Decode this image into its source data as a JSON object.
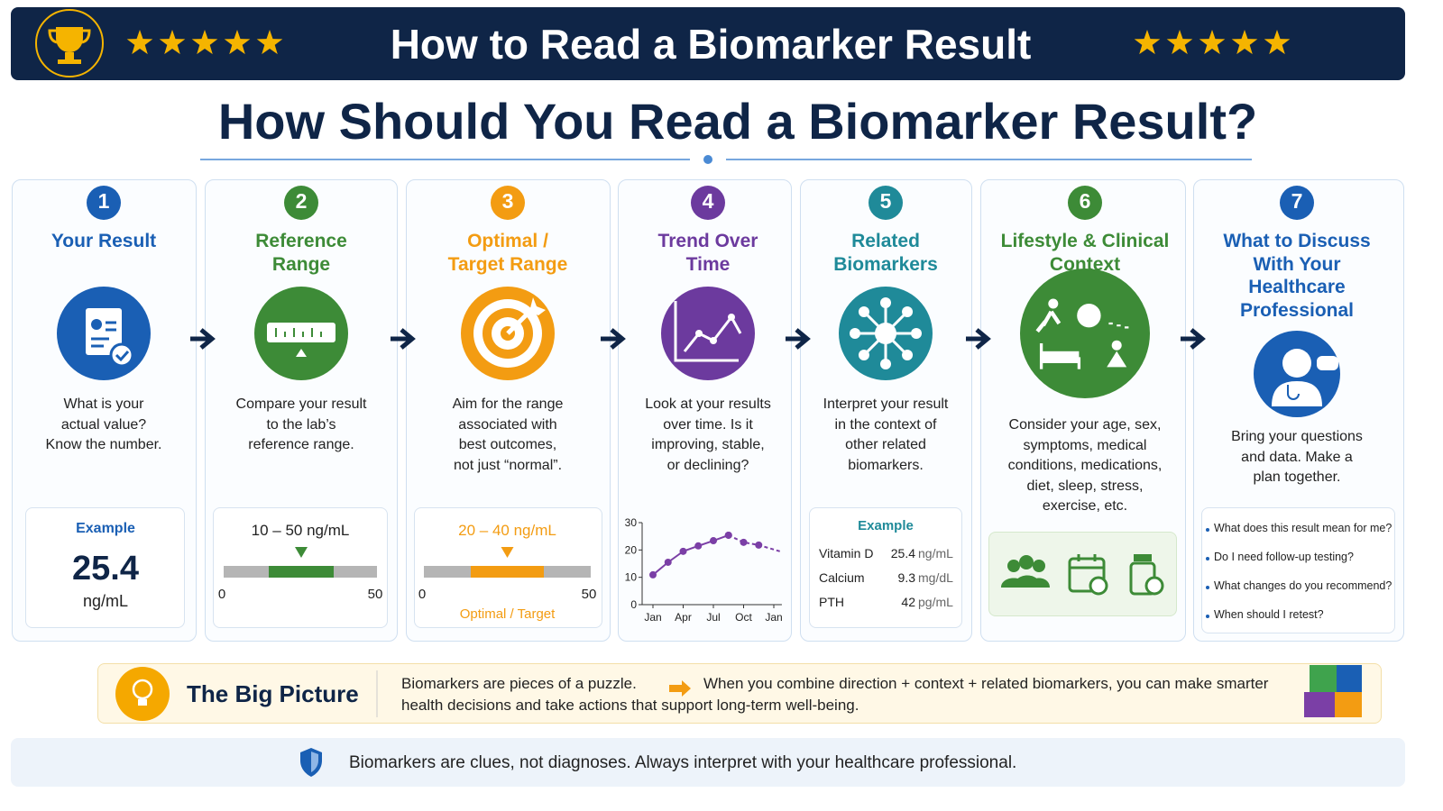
{
  "header": {
    "title": "How to Read a Biomarker Result"
  },
  "main_title": "How Should You Read a Biomarker Result?",
  "steps": [
    {
      "number": "1",
      "title": [
        "Your Result"
      ],
      "description": [
        "What is your",
        "actual value?",
        "Know the number."
      ],
      "example": {
        "label": "Example",
        "value": "25.4",
        "unit": "ng/mL"
      }
    },
    {
      "number": "2",
      "title": [
        "Reference",
        "Range"
      ],
      "description": [
        "Compare your result",
        "to the lab’s",
        "reference range."
      ],
      "range": {
        "label": "10 – 50 ng/mL",
        "min": "0",
        "max": "50"
      }
    },
    {
      "number": "3",
      "title": [
        "Optimal /",
        "Target Range"
      ],
      "description": [
        "Aim for the range",
        "associated with",
        "best outcomes,",
        "not just “normal”."
      ],
      "range": {
        "label": "20 – 40 ng/mL",
        "min": "0",
        "max": "50",
        "caption": "Optimal / Target"
      }
    },
    {
      "number": "4",
      "title": [
        "Trend Over",
        "Time"
      ],
      "description": [
        "Look at your results",
        "over time. Is it",
        "improving, stable,",
        "or declining?"
      ],
      "chart": {
        "type": "line",
        "xlim": [
          0,
          12.8
        ],
        "xticks": [
          {
            "value": 0,
            "label": "Jan"
          },
          {
            "value": 3,
            "label": "Apr"
          },
          {
            "value": 6,
            "label": "Jul"
          },
          {
            "value": 9,
            "label": "Oct"
          },
          {
            "value": 12,
            "label": "Jan"
          }
        ],
        "ylim": [
          0,
          30
        ],
        "yticks": [
          0,
          10,
          20,
          30
        ],
        "series": [
          {
            "color": "#7b3fa6",
            "style": "solid",
            "x": [
              0,
              1.5,
              3,
              4.5,
              6,
              7.5
            ],
            "values": [
              10.9,
              15.5,
              19.5,
              21.5,
              23.4,
              25.4
            ]
          },
          {
            "color": "#7b3fa6",
            "style": "dashed",
            "x": [
              7.5,
              9,
              10.5,
              12.6
            ],
            "values": [
              25.4,
              22.8,
              21.8,
              19.5
            ]
          }
        ]
      }
    },
    {
      "number": "5",
      "title": [
        "Related",
        "Biomarkers"
      ],
      "description": [
        "Interpret your result",
        "in the context of",
        "other related",
        "biomarkers."
      ],
      "example": {
        "label": "Example",
        "rows": [
          [
            "Vitamin D",
            "25.4",
            "ng/mL"
          ],
          [
            "Calcium",
            "9.3",
            "mg/dL"
          ],
          [
            "PTH",
            "42",
            "pg/mL"
          ]
        ]
      }
    },
    {
      "number": "6",
      "title": [
        "Lifestyle & Clinical",
        "Context"
      ],
      "description": [
        "Consider your age, sex,",
        "symptoms, medical",
        "conditions, medications,",
        "diet, sleep, stress,",
        "exercise, etc."
      ]
    },
    {
      "number": "7",
      "title": [
        "What to Discuss",
        "With Your",
        "Healthcare",
        "Professional"
      ],
      "description": [
        "Bring your questions",
        "and data. Make a",
        "plan together."
      ],
      "questions": [
        "What does this result mean for me?",
        "Do I need follow-up testing?",
        "What changes do you recommend?",
        "When should I retest?"
      ]
    }
  ],
  "big_picture": {
    "title": "The Big Picture",
    "lead": "Biomarkers are pieces of a puzzle.",
    "text": [
      "When you combine direction + context + related biomarkers, you can make smarter",
      "health decisions and take actions that support long-term well-being."
    ]
  },
  "footer": "Biomarkers are clues, not diagnoses. Always interpret with your healthcare professional."
}
